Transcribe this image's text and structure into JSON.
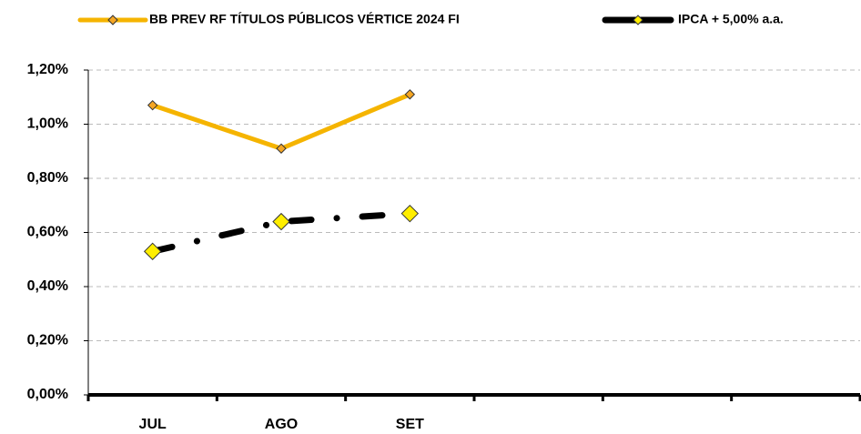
{
  "chart_data": {
    "type": "line",
    "categories": [
      "JUL",
      "AGO",
      "SET",
      null,
      null,
      null
    ],
    "series": [
      {
        "name": "BB PREV RF TÍTULOS PÚBLICOS VÉRTICE 2024 FI",
        "color": "#f5b400",
        "marker_color": "#f5a623",
        "line_style": "solid",
        "values": [
          1.07,
          0.91,
          1.11,
          null,
          null,
          null
        ]
      },
      {
        "name": "IPCA + 5,00% a.a.",
        "color": "#000000",
        "marker_color": "#ffee00",
        "line_style": "dash-dot",
        "values": [
          0.53,
          0.64,
          0.67,
          null,
          null,
          null
        ]
      }
    ],
    "ylim": [
      0,
      1.2
    ],
    "yticks": [
      {
        "value": 0,
        "label": "0,00%"
      },
      {
        "value": 0.2,
        "label": "0,20%"
      },
      {
        "value": 0.4,
        "label": "0,40%"
      },
      {
        "value": 0.6,
        "label": "0,60%"
      },
      {
        "value": 0.8,
        "label": "0,80%"
      },
      {
        "value": 1.0,
        "label": "1,00%"
      },
      {
        "value": 1.2,
        "label": "1,20%"
      }
    ],
    "grid": true,
    "legend": "top"
  }
}
